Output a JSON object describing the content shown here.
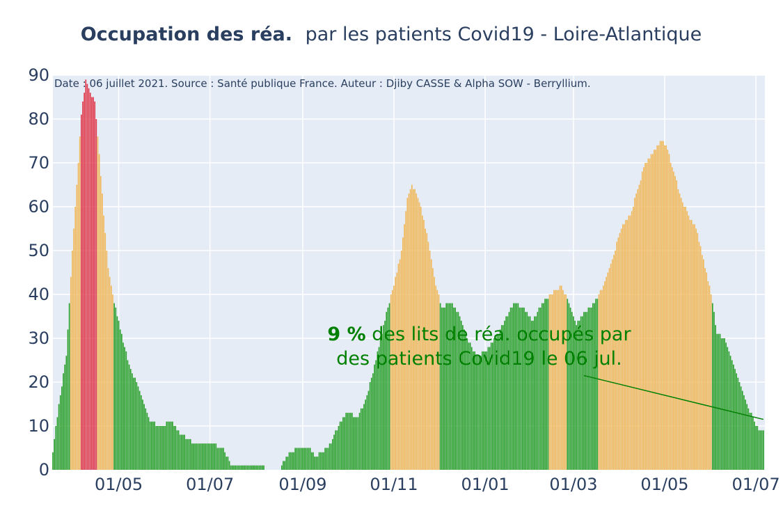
{
  "chart_data": {
    "type": "bar",
    "title_bold": "Occupation des réa.",
    "title_rest": "par les patients Covid19 - Loire-Atlantique",
    "note": "Date : 06 juillet 2021. Source : Santé publique France. Auteur : Djiby CASSE & Alpha SOW - Berryllium.",
    "x_start": "2020-03-18",
    "x_end": "2021-07-06",
    "xlim": [
      "2020-03-18",
      "2021-07-07"
    ],
    "ylim": [
      0,
      90
    ],
    "y_ticks": [
      0,
      10,
      20,
      30,
      40,
      50,
      60,
      70,
      80,
      90
    ],
    "x_ticks": [
      {
        "date": "2020-05-01",
        "label": "01/05"
      },
      {
        "date": "2020-07-01",
        "label": "01/07"
      },
      {
        "date": "2020-09-01",
        "label": "01/09"
      },
      {
        "date": "2020-11-01",
        "label": "01/11"
      },
      {
        "date": "2021-01-01",
        "label": "01/01"
      },
      {
        "date": "2021-03-01",
        "label": "01/03"
      },
      {
        "date": "2021-05-01",
        "label": "01/05"
      },
      {
        "date": "2021-07-01",
        "label": "01/07"
      }
    ],
    "anchors": [
      [
        "2020-03-18",
        4
      ],
      [
        "2020-03-22",
        15
      ],
      [
        "2020-03-27",
        26
      ],
      [
        "2020-03-31",
        50
      ],
      [
        "2020-04-03",
        65
      ],
      [
        "2020-04-06",
        81
      ],
      [
        "2020-04-09",
        89
      ],
      [
        "2020-04-12",
        86
      ],
      [
        "2020-04-15",
        84
      ],
      [
        "2020-04-18",
        72
      ],
      [
        "2020-04-21",
        58
      ],
      [
        "2020-04-24",
        46
      ],
      [
        "2020-04-27",
        40
      ],
      [
        "2020-05-02",
        32
      ],
      [
        "2020-05-08",
        24
      ],
      [
        "2020-05-15",
        18
      ],
      [
        "2020-05-22",
        11
      ],
      [
        "2020-05-29",
        10
      ],
      [
        "2020-06-05",
        11
      ],
      [
        "2020-06-12",
        8
      ],
      [
        "2020-06-20",
        6
      ],
      [
        "2020-06-30",
        6
      ],
      [
        "2020-07-10",
        5
      ],
      [
        "2020-07-15",
        1
      ],
      [
        "2020-08-05",
        1
      ],
      [
        "2020-08-07",
        0
      ],
      [
        "2020-08-17",
        0
      ],
      [
        "2020-08-21",
        3
      ],
      [
        "2020-08-28",
        5
      ],
      [
        "2020-09-05",
        5
      ],
      [
        "2020-09-10",
        3
      ],
      [
        "2020-09-18",
        5
      ],
      [
        "2020-09-25",
        10
      ],
      [
        "2020-10-01",
        13
      ],
      [
        "2020-10-08",
        12
      ],
      [
        "2020-10-13",
        16
      ],
      [
        "2020-10-18",
        22
      ],
      [
        "2020-10-22",
        28
      ],
      [
        "2020-10-27",
        36
      ],
      [
        "2020-11-01",
        42
      ],
      [
        "2020-11-06",
        50
      ],
      [
        "2020-11-10",
        62
      ],
      [
        "2020-11-13",
        65
      ],
      [
        "2020-11-17",
        62
      ],
      [
        "2020-11-21",
        57
      ],
      [
        "2020-11-25",
        50
      ],
      [
        "2020-11-29",
        42
      ],
      [
        "2020-12-03",
        37
      ],
      [
        "2020-12-09",
        38
      ],
      [
        "2020-12-14",
        36
      ],
      [
        "2020-12-20",
        30
      ],
      [
        "2020-12-26",
        26
      ],
      [
        "2021-01-02",
        27
      ],
      [
        "2021-01-08",
        30
      ],
      [
        "2021-01-14",
        34
      ],
      [
        "2021-01-20",
        38
      ],
      [
        "2021-01-26",
        37
      ],
      [
        "2021-02-02",
        34
      ],
      [
        "2021-02-08",
        38
      ],
      [
        "2021-02-14",
        40
      ],
      [
        "2021-02-21",
        42
      ],
      [
        "2021-02-26",
        38
      ],
      [
        "2021-03-03",
        33
      ],
      [
        "2021-03-09",
        36
      ],
      [
        "2021-03-15",
        38
      ],
      [
        "2021-03-21",
        42
      ],
      [
        "2021-03-27",
        48
      ],
      [
        "2021-04-02",
        55
      ],
      [
        "2021-04-08",
        58
      ],
      [
        "2021-04-13",
        64
      ],
      [
        "2021-04-18",
        70
      ],
      [
        "2021-04-23",
        72
      ],
      [
        "2021-04-28",
        75
      ],
      [
        "2021-05-02",
        74
      ],
      [
        "2021-05-07",
        68
      ],
      [
        "2021-05-12",
        62
      ],
      [
        "2021-05-17",
        58
      ],
      [
        "2021-05-22",
        55
      ],
      [
        "2021-05-27",
        48
      ],
      [
        "2021-06-01",
        40
      ],
      [
        "2021-06-05",
        31
      ],
      [
        "2021-06-10",
        30
      ],
      [
        "2021-06-15",
        25
      ],
      [
        "2021-06-20",
        20
      ],
      [
        "2021-06-25",
        15
      ],
      [
        "2021-06-30",
        11
      ],
      [
        "2021-07-03",
        9
      ],
      [
        "2021-07-06",
        9
      ]
    ],
    "color_thresholds": {
      "orange_min": 40,
      "red_min": 80
    },
    "colors": {
      "green": "#2ca02c",
      "orange": "#f0b85a",
      "red": "#e0384b",
      "grid": "#ffffff",
      "background": "#e5ecf6",
      "annotation": "#008000"
    },
    "annotation": {
      "pct": "9  %",
      "line1_rest": " des lits de réa. occupés par",
      "line2": "des patients Covid19 le 06 jul.",
      "arrow_to": [
        "2021-07-06",
        11.5
      ],
      "arrow_from": [
        "2021-03-08",
        21.5
      ],
      "text_at": [
        "2020-12-28",
        30
      ]
    }
  }
}
